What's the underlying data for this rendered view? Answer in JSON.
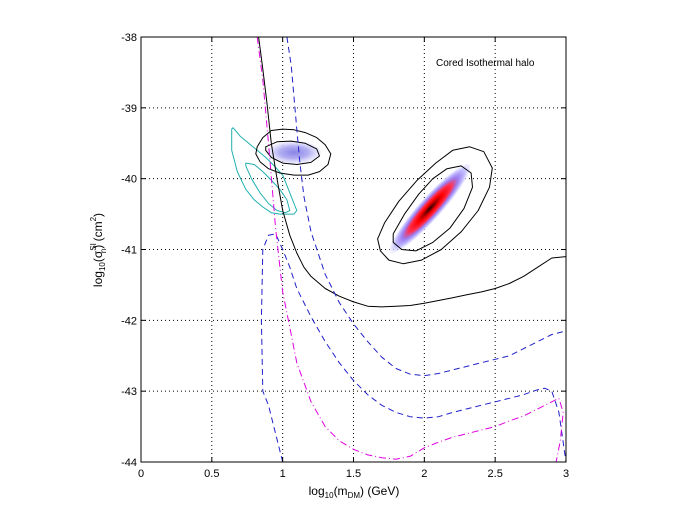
{
  "chart_data": {
    "type": "scatter",
    "title": "",
    "annotation": "Cored Isothermal halo",
    "xlabel": {
      "base": "log",
      "sub": "10",
      "open": "(m",
      "sub2": "DM",
      "close": ") (GeV)"
    },
    "ylabel": {
      "base": "log",
      "sub": "10",
      "open": "(σ",
      "sup": "SI",
      "sub2": "n",
      "mid": ") (cm",
      "sup2": "2",
      "close": ")"
    },
    "xlim": [
      0,
      3
    ],
    "ylim": [
      -44,
      -38
    ],
    "xticks": [
      0,
      0.5,
      1,
      1.5,
      2,
      2.5,
      3
    ],
    "xtick_labels": [
      "0",
      "0.5",
      "1",
      "1.5",
      "2",
      "2.5",
      "3"
    ],
    "yticks": [
      -38,
      -39,
      -40,
      -41,
      -42,
      -43,
      -44
    ],
    "ytick_labels": [
      "-38",
      "-39",
      "-40",
      "-41",
      "-42",
      "-43",
      "-44"
    ],
    "grid": true,
    "colors": {
      "black_curve": "#000000",
      "blue_dashed": "#2020c8",
      "magenta_dashdot": "#e000e0",
      "cyan_contour": "#20b0b0",
      "blob_outer": "#c8c8ff",
      "blob_mid": "#8080e0",
      "blob_red": "#ff0000",
      "blob_core": "#300000"
    },
    "series": [
      {
        "style": "solid-black",
        "x": [
          0.83,
          0.86,
          0.89,
          0.92,
          0.96,
          1.0,
          1.05,
          1.1,
          1.15,
          1.2,
          1.3,
          1.4,
          1.5,
          1.6,
          1.7,
          1.8,
          1.9,
          2.0,
          2.1,
          2.2,
          2.3,
          2.4,
          2.5,
          2.6,
          2.7,
          2.8,
          2.9,
          3.0
        ],
        "y": [
          -38.0,
          -38.45,
          -38.95,
          -39.5,
          -40.0,
          -40.45,
          -40.8,
          -41.05,
          -41.25,
          -41.38,
          -41.55,
          -41.66,
          -41.74,
          -41.8,
          -41.81,
          -41.8,
          -41.79,
          -41.76,
          -41.72,
          -41.68,
          -41.64,
          -41.6,
          -41.55,
          -41.48,
          -41.38,
          -41.25,
          -41.12,
          -41.1
        ]
      },
      {
        "style": "dashed-blue-upper",
        "x": [
          1.03,
          1.06,
          1.08,
          1.1,
          1.12,
          1.15,
          1.2,
          1.3,
          1.4,
          1.5,
          1.6,
          1.7,
          1.8,
          1.9,
          2.0,
          2.1,
          2.2,
          2.3,
          2.4,
          2.5,
          2.6,
          2.7,
          2.8,
          2.9,
          3.0
        ],
        "y": [
          -38.0,
          -38.4,
          -38.85,
          -39.3,
          -39.75,
          -40.25,
          -40.75,
          -41.35,
          -41.75,
          -42.05,
          -42.3,
          -42.52,
          -42.68,
          -42.76,
          -42.78,
          -42.75,
          -42.7,
          -42.65,
          -42.6,
          -42.55,
          -42.5,
          -42.4,
          -42.3,
          -42.2,
          -42.15
        ]
      },
      {
        "style": "dashed-blue-lower",
        "x": [
          1.0,
          0.95,
          0.9,
          0.86,
          0.85,
          0.86,
          0.9,
          0.95,
          1.0,
          1.05,
          1.1,
          1.2,
          1.3,
          1.4,
          1.5,
          1.6,
          1.7,
          1.8,
          1.9,
          2.0,
          2.1,
          2.2,
          2.3,
          2.4,
          2.5,
          2.6,
          2.7,
          2.8,
          2.85,
          2.9,
          2.95,
          3.0
        ],
        "y": [
          -44.0,
          -43.6,
          -43.2,
          -43.0,
          -42.0,
          -41.0,
          -40.8,
          -40.78,
          -41.0,
          -41.25,
          -41.55,
          -41.95,
          -42.3,
          -42.6,
          -42.85,
          -43.05,
          -43.2,
          -43.3,
          -43.36,
          -43.38,
          -43.36,
          -43.3,
          -43.25,
          -43.2,
          -43.15,
          -43.1,
          -43.05,
          -42.98,
          -42.96,
          -43.0,
          -43.3,
          -44.0
        ]
      },
      {
        "style": "dashdot-magenta",
        "x": [
          0.82,
          0.86,
          0.9,
          0.95,
          1.0,
          1.05,
          1.1,
          1.2,
          1.3,
          1.4,
          1.5,
          1.6,
          1.7,
          1.8,
          1.9,
          2.0,
          2.1,
          2.2,
          2.3,
          2.4,
          2.5,
          2.6,
          2.7,
          2.8,
          2.9,
          2.95,
          2.98,
          2.96,
          2.93
        ],
        "y": [
          -38.0,
          -38.6,
          -39.5,
          -40.7,
          -41.6,
          -42.1,
          -42.6,
          -43.15,
          -43.5,
          -43.7,
          -43.82,
          -43.9,
          -43.94,
          -43.96,
          -43.92,
          -43.8,
          -43.72,
          -43.65,
          -43.6,
          -43.55,
          -43.5,
          -43.42,
          -43.35,
          -43.25,
          -43.15,
          -43.1,
          -43.3,
          -43.7,
          -44.0
        ]
      }
    ],
    "contours": [
      {
        "style": "cyan",
        "x": [
          0.65,
          0.7,
          0.76,
          0.82,
          0.88,
          0.94,
          1.0,
          1.05,
          1.08,
          1.1,
          1.08,
          1.04,
          0.98,
          0.92,
          0.86,
          0.8,
          0.74,
          0.68,
          0.64,
          0.64
        ],
        "y": [
          -39.28,
          -39.4,
          -39.5,
          -39.6,
          -39.7,
          -39.82,
          -39.95,
          -40.2,
          -40.35,
          -40.45,
          -40.5,
          -40.5,
          -40.5,
          -40.48,
          -40.4,
          -40.3,
          -40.15,
          -39.9,
          -39.6,
          -39.3
        ]
      },
      {
        "style": "cyan",
        "x": [
          0.74,
          0.8,
          0.86,
          0.92,
          0.98,
          1.03,
          1.05,
          1.02,
          0.96,
          0.9,
          0.84,
          0.78,
          0.74
        ],
        "y": [
          -39.78,
          -39.8,
          -39.9,
          -40.02,
          -40.15,
          -40.3,
          -40.45,
          -40.48,
          -40.45,
          -40.35,
          -40.2,
          -40.0,
          -39.82
        ]
      },
      {
        "style": "black",
        "x": [
          0.82,
          0.86,
          0.92,
          1.0,
          1.08,
          1.16,
          1.24,
          1.3,
          1.34,
          1.32,
          1.26,
          1.18,
          1.08,
          0.98,
          0.9,
          0.84,
          0.81,
          0.82
        ],
        "y": [
          -39.55,
          -39.42,
          -39.32,
          -39.3,
          -39.31,
          -39.35,
          -39.42,
          -39.52,
          -39.65,
          -39.8,
          -39.9,
          -39.95,
          -39.95,
          -39.92,
          -39.86,
          -39.76,
          -39.65,
          -39.55
        ]
      },
      {
        "style": "black",
        "x": [
          0.88,
          0.96,
          1.06,
          1.16,
          1.24,
          1.26,
          1.2,
          1.1,
          1.0,
          0.92,
          0.88
        ],
        "y": [
          -39.55,
          -39.48,
          -39.47,
          -39.5,
          -39.58,
          -39.68,
          -39.77,
          -39.8,
          -39.78,
          -39.7,
          -39.6
        ]
      },
      {
        "style": "black",
        "x": [
          1.67,
          1.72,
          1.82,
          1.95,
          2.08,
          2.2,
          2.32,
          2.42,
          2.48,
          2.46,
          2.38,
          2.26,
          2.12,
          1.98,
          1.85,
          1.75,
          1.69,
          1.67
        ],
        "y": [
          -40.85,
          -40.62,
          -40.32,
          -40.02,
          -39.78,
          -39.6,
          -39.55,
          -39.62,
          -39.85,
          -40.12,
          -40.45,
          -40.75,
          -41.0,
          -41.15,
          -41.2,
          -41.15,
          -41.02,
          -40.85
        ]
      },
      {
        "style": "black",
        "x": [
          1.78,
          1.86,
          1.96,
          2.06,
          2.16,
          2.26,
          2.33,
          2.34,
          2.28,
          2.18,
          2.06,
          1.94,
          1.84,
          1.78
        ],
        "y": [
          -40.78,
          -40.5,
          -40.22,
          -40.0,
          -39.86,
          -39.82,
          -39.92,
          -40.12,
          -40.42,
          -40.7,
          -40.9,
          -41.02,
          -41.0,
          -40.9
        ]
      }
    ],
    "blobs": [
      {
        "cx": 1.08,
        "cy": -39.63,
        "rx": 0.19,
        "ry": 0.16,
        "angle": 0,
        "kind": "blue"
      },
      {
        "cx": 2.04,
        "cy": -40.42,
        "rx": 0.42,
        "ry": 0.16,
        "angle": 48,
        "kind": "red"
      }
    ]
  }
}
